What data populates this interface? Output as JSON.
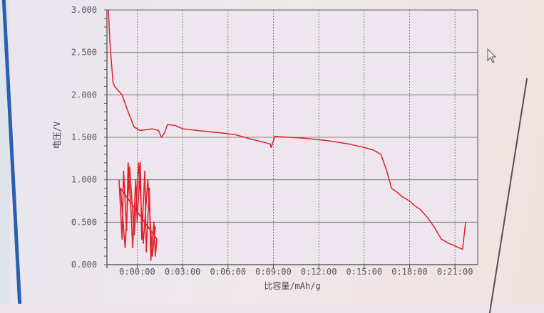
{
  "chart_data": {
    "type": "line",
    "title": "",
    "xlabel": "比容量/mAh/g",
    "ylabel": "电压/V",
    "xlim": [
      -2,
      22.5
    ],
    "ylim": [
      0,
      3.0
    ],
    "grid": true,
    "x_tick_values": [
      0,
      3,
      6,
      9,
      12,
      15,
      18,
      21
    ],
    "x_tick_labels": [
      "0:00:00",
      "0:03:00",
      "0:06:00",
      "0:09:00",
      "0:12:00",
      "0:15:00",
      "0:18:00",
      "0:21:00"
    ],
    "y_tick_values": [
      0,
      0.5,
      1.0,
      1.5,
      2.0,
      2.5,
      3.0
    ],
    "y_tick_labels": [
      "0.000",
      "0.500",
      "1.000",
      "1.500",
      "2.000",
      "2.500",
      "3.000"
    ],
    "series_color": "#e0202a",
    "series": [
      {
        "x": [
          -1.9,
          -1.8,
          -1.6,
          -1.5,
          -1.0,
          -0.6,
          -0.2,
          0.2,
          0.6,
          1.0,
          1.4,
          1.6,
          1.8,
          2.0,
          2.5,
          3.0,
          4.0,
          5.6,
          6.5,
          7.5,
          8.4,
          8.8,
          8.85,
          9.1,
          10.0,
          11.0,
          12.1,
          13.0,
          14.0,
          15.0,
          15.6,
          16.1,
          16.5,
          16.8,
          17.2,
          17.5,
          18.0,
          18.3,
          18.7,
          19.2,
          19.6,
          20.1,
          20.6,
          21.0,
          21.5,
          21.7
        ],
        "y": [
          3.0,
          2.6,
          2.15,
          2.1,
          2.0,
          1.8,
          1.62,
          1.58,
          1.59,
          1.6,
          1.58,
          1.5,
          1.55,
          1.65,
          1.64,
          1.6,
          1.58,
          1.55,
          1.53,
          1.48,
          1.44,
          1.42,
          1.38,
          1.51,
          1.5,
          1.49,
          1.47,
          1.45,
          1.42,
          1.38,
          1.35,
          1.3,
          1.1,
          0.9,
          0.85,
          0.8,
          0.75,
          0.7,
          0.65,
          0.55,
          0.45,
          0.3,
          0.25,
          0.22,
          0.18,
          0.5
        ]
      },
      {
        "x": [
          -1.2,
          -1.0,
          -0.9,
          -0.7,
          -0.6,
          -0.4,
          -0.3,
          -0.1,
          0.0,
          0.2,
          0.3,
          0.5,
          0.6,
          0.8,
          0.9,
          1.1,
          1.2,
          1.3,
          -1.1,
          -0.8,
          -0.5,
          -0.2,
          0.1,
          0.4,
          0.7,
          1.0,
          1.2
        ],
        "y": [
          1.0,
          0.3,
          1.1,
          0.4,
          1.2,
          0.6,
          0.2,
          1.0,
          0.5,
          1.2,
          0.3,
          1.1,
          0.15,
          0.9,
          0.05,
          0.5,
          0.1,
          0.3,
          0.9,
          0.2,
          1.15,
          0.35,
          1.2,
          0.25,
          1.0,
          0.1,
          0.45
        ]
      }
    ]
  }
}
